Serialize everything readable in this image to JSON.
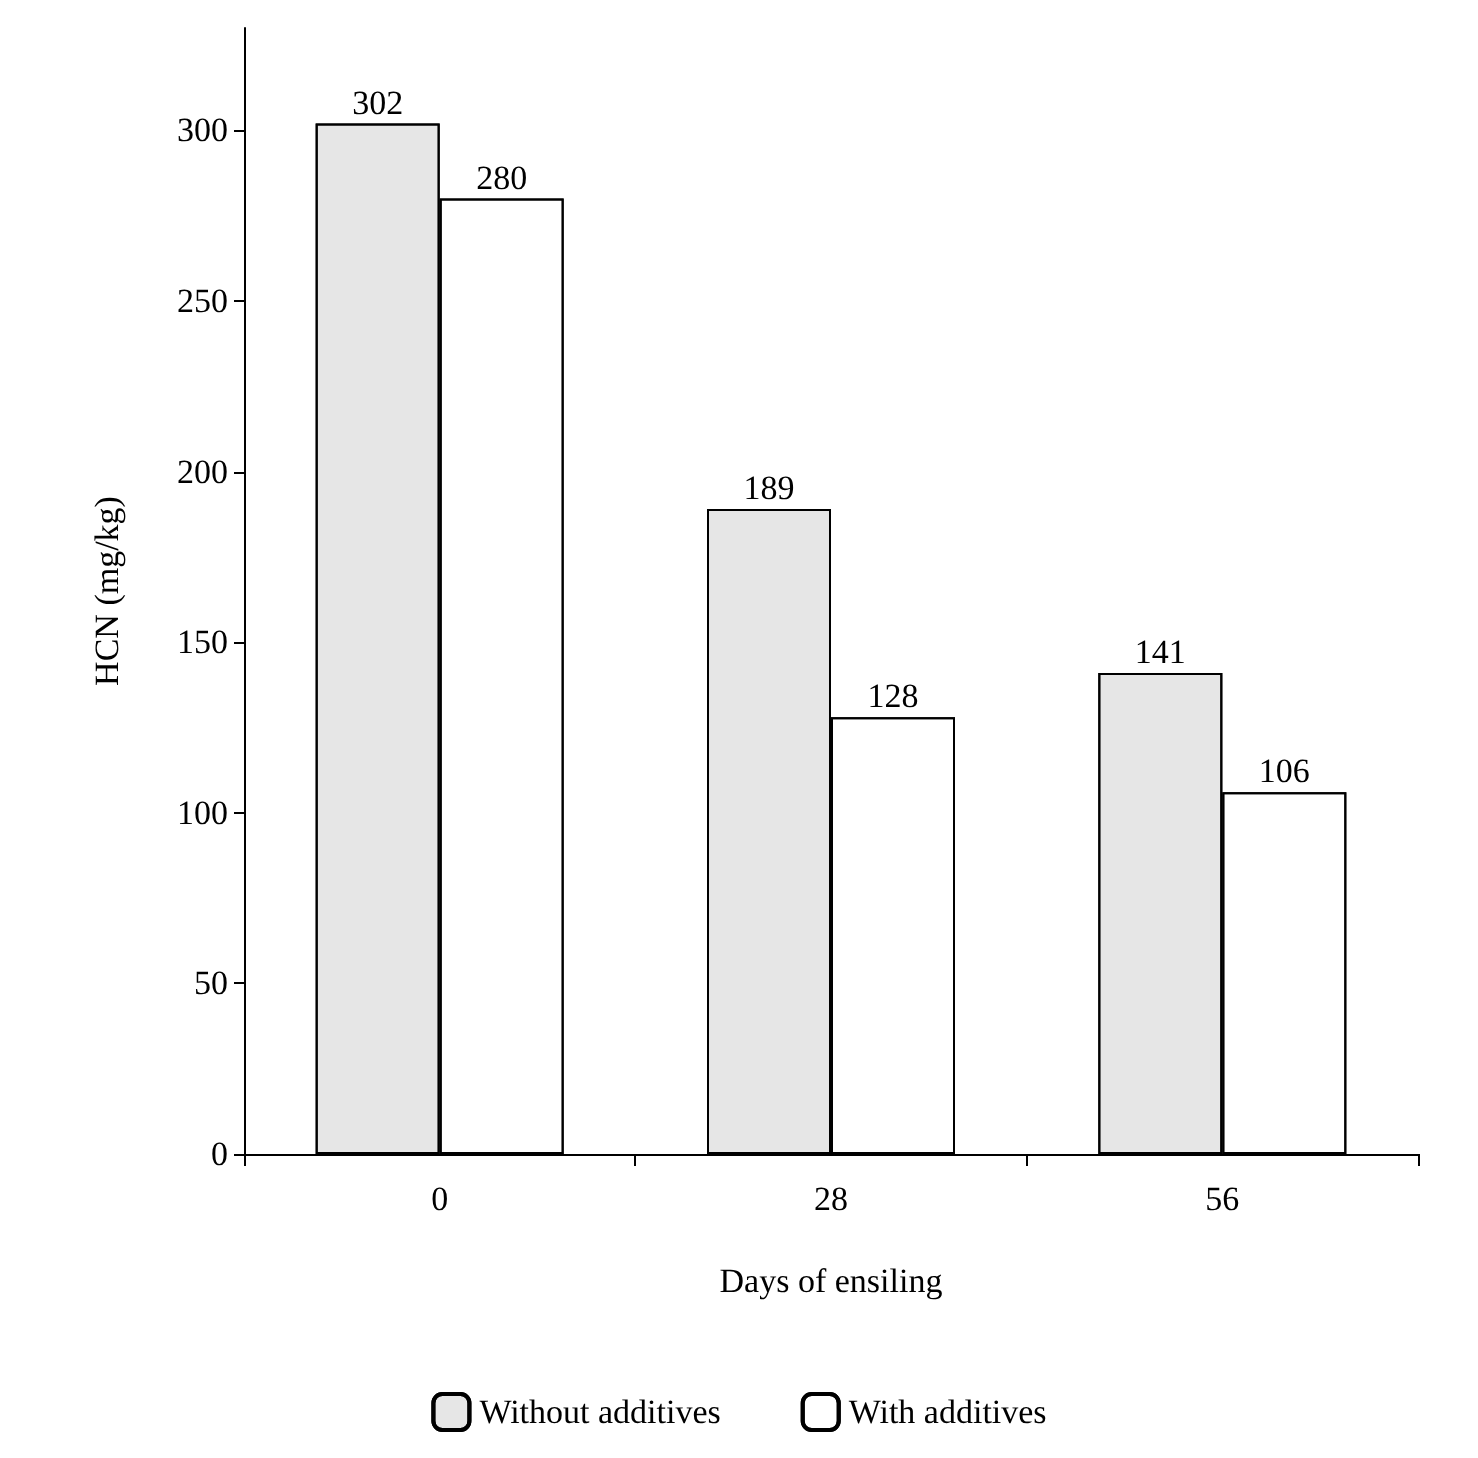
{
  "chart_data": {
    "type": "bar",
    "xlabel": "Days of ensiling",
    "ylabel": "HCN (mg/kg)",
    "categories": [
      "0",
      "28",
      "56"
    ],
    "series": [
      {
        "name": "Without additives",
        "color": "#e6e6e6",
        "values": [
          302,
          189,
          141
        ]
      },
      {
        "name": "With additives",
        "color": "#ffffff",
        "values": [
          280,
          128,
          106
        ]
      }
    ],
    "ylim": [
      0,
      330
    ],
    "yticks": [
      0,
      50,
      100,
      150,
      200,
      250,
      300
    ],
    "grid": false,
    "legend": "bottom",
    "data_labels": true
  }
}
